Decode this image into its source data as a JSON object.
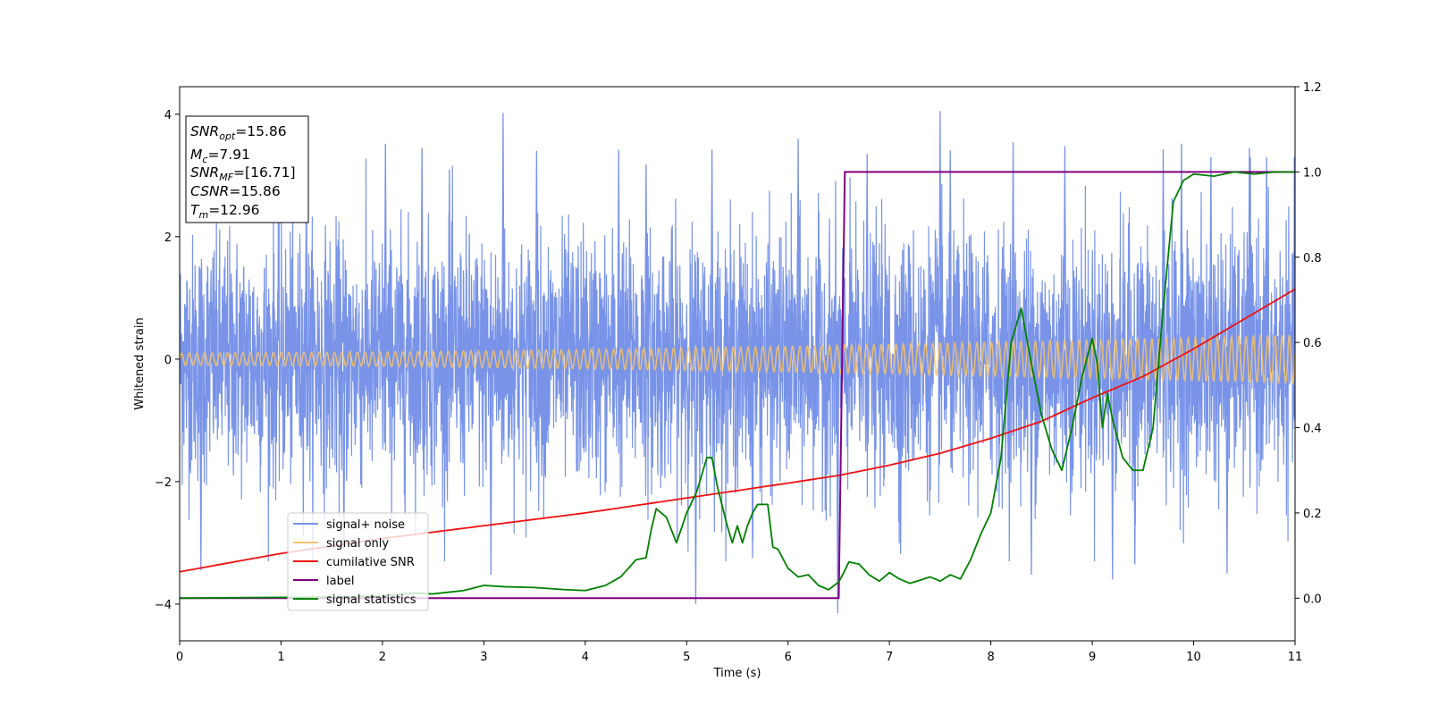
{
  "chart_data": {
    "type": "line",
    "title": "",
    "xlabel": "Time (s)",
    "ylabel": "Whitened strain",
    "xlim": [
      0,
      11
    ],
    "ylim": [
      -4.6,
      4.45
    ],
    "y2lim": [
      -0.1,
      1.2
    ],
    "xticks": [
      "0",
      "1",
      "2",
      "3",
      "4",
      "5",
      "6",
      "7",
      "8",
      "9",
      "10",
      "11"
    ],
    "yticks": [
      "−4",
      "−2",
      "0",
      "2",
      "4"
    ],
    "y2ticks": [
      "0.0",
      "0.2",
      "0.4",
      "0.6",
      "0.8",
      "1.0",
      "1.2"
    ],
    "grid": false,
    "legend_position": "lower-left",
    "annotations": [
      {
        "key": "SNR_opt",
        "base": "SNR",
        "sub": "opt",
        "value": "=15.86"
      },
      {
        "key": "M_c",
        "base": "M",
        "sub": "c",
        "value": "=7.91"
      },
      {
        "key": "SNR_MF",
        "base": "SNR",
        "sub": "MF",
        "value": "=[16.71]"
      },
      {
        "key": "CSNR",
        "base": "CSNR",
        "sub": "",
        "value": "=15.86"
      },
      {
        "key": "T_m",
        "base": "T",
        "sub": "m",
        "value": "=12.96"
      }
    ],
    "series": [
      {
        "name": "signal+ noise",
        "axis": "left",
        "color": "#7893e8",
        "description": "whitened noise plus signal, std approx 1.0 around 0",
        "amplitude_range": [
          -4.15,
          4.05
        ],
        "spikes": [
          {
            "x": 0.21,
            "y": -3.45
          },
          {
            "x": 1.25,
            "y": 2.98
          },
          {
            "x": 1.62,
            "y": -3.1
          },
          {
            "x": 2.03,
            "y": 3.52
          },
          {
            "x": 2.39,
            "y": 3.45
          },
          {
            "x": 2.66,
            "y": 3.1
          },
          {
            "x": 3.07,
            "y": -3.52
          },
          {
            "x": 3.19,
            "y": 4.02
          },
          {
            "x": 3.52,
            "y": 3.4
          },
          {
            "x": 4.33,
            "y": 3.42
          },
          {
            "x": 4.6,
            "y": 3.18
          },
          {
            "x": 5.09,
            "y": -4.0
          },
          {
            "x": 5.25,
            "y": 3.42
          },
          {
            "x": 5.65,
            "y": -3.25
          },
          {
            "x": 6.1,
            "y": 3.6
          },
          {
            "x": 6.49,
            "y": -4.15
          },
          {
            "x": 6.78,
            "y": 3.35
          },
          {
            "x": 7.11,
            "y": -3.18
          },
          {
            "x": 7.5,
            "y": 4.05
          },
          {
            "x": 7.6,
            "y": 3.41
          },
          {
            "x": 8.22,
            "y": 3.54
          },
          {
            "x": 8.4,
            "y": -3.52
          },
          {
            "x": 8.73,
            "y": 3.48
          },
          {
            "x": 9.2,
            "y": -3.6
          },
          {
            "x": 9.42,
            "y": -3.35
          },
          {
            "x": 9.7,
            "y": 3.43
          },
          {
            "x": 9.88,
            "y": 3.52
          },
          {
            "x": 10.17,
            "y": 3.3
          },
          {
            "x": 10.33,
            "y": -3.5
          },
          {
            "x": 10.55,
            "y": 3.45
          },
          {
            "x": 10.72,
            "y": 3.3
          }
        ]
      },
      {
        "name": "signal only",
        "axis": "left",
        "color": "#f5c26b",
        "description": "chirp, amplitude grows from about 0.1 to 0.4",
        "amplitude_start": 0.1,
        "amplitude_end": 0.4
      },
      {
        "name": "cumilative SNR",
        "axis": "right",
        "color": "#ee1111",
        "x": [
          0,
          1,
          2,
          3,
          4,
          5,
          6,
          6.5,
          7,
          7.5,
          8,
          8.5,
          9,
          9.5,
          10,
          10.5,
          11
        ],
        "y": [
          0.062,
          0.105,
          0.14,
          0.17,
          0.2,
          0.235,
          0.27,
          0.288,
          0.312,
          0.34,
          0.375,
          0.415,
          0.47,
          0.52,
          0.585,
          0.655,
          0.725
        ]
      },
      {
        "name": "label",
        "axis": "right",
        "color": "#800080",
        "x": [
          0,
          6.5,
          6.56,
          11
        ],
        "y": [
          0,
          0,
          1,
          1
        ]
      },
      {
        "name": "signal statistics",
        "axis": "right",
        "color": "#008000",
        "x": [
          0,
          0.5,
          1,
          1.5,
          2,
          2.3,
          2.5,
          2.8,
          3,
          3.2,
          3.5,
          3.8,
          4,
          4.2,
          4.35,
          4.5,
          4.6,
          4.65,
          4.7,
          4.8,
          4.9,
          5.0,
          5.1,
          5.2,
          5.25,
          5.3,
          5.4,
          5.45,
          5.5,
          5.55,
          5.6,
          5.65,
          5.7,
          5.8,
          5.85,
          5.9,
          6.0,
          6.1,
          6.2,
          6.3,
          6.4,
          6.5,
          6.55,
          6.6,
          6.7,
          6.8,
          6.9,
          7.0,
          7.1,
          7.2,
          7.3,
          7.4,
          7.5,
          7.6,
          7.7,
          7.8,
          7.9,
          8.0,
          8.1,
          8.2,
          8.3,
          8.4,
          8.5,
          8.6,
          8.7,
          8.8,
          8.9,
          9.0,
          9.05,
          9.1,
          9.15,
          9.2,
          9.3,
          9.4,
          9.5,
          9.6,
          9.7,
          9.8,
          9.9,
          10.0,
          10.2,
          10.4,
          10.6,
          10.8,
          11.0
        ],
        "y": [
          0.0,
          0.001,
          0.002,
          0.003,
          0.005,
          0.012,
          0.01,
          0.018,
          0.03,
          0.027,
          0.025,
          0.02,
          0.018,
          0.03,
          0.05,
          0.09,
          0.095,
          0.16,
          0.21,
          0.19,
          0.13,
          0.2,
          0.25,
          0.33,
          0.33,
          0.265,
          0.17,
          0.13,
          0.17,
          0.13,
          0.17,
          0.2,
          0.22,
          0.22,
          0.12,
          0.115,
          0.07,
          0.05,
          0.055,
          0.03,
          0.02,
          0.038,
          0.06,
          0.085,
          0.08,
          0.055,
          0.04,
          0.06,
          0.045,
          0.035,
          0.042,
          0.05,
          0.04,
          0.055,
          0.045,
          0.09,
          0.15,
          0.2,
          0.33,
          0.6,
          0.68,
          0.55,
          0.43,
          0.35,
          0.3,
          0.4,
          0.52,
          0.61,
          0.55,
          0.4,
          0.48,
          0.42,
          0.33,
          0.3,
          0.3,
          0.4,
          0.68,
          0.93,
          0.98,
          0.995,
          0.99,
          1.0,
          0.995,
          1.0,
          1.0
        ]
      }
    ]
  }
}
